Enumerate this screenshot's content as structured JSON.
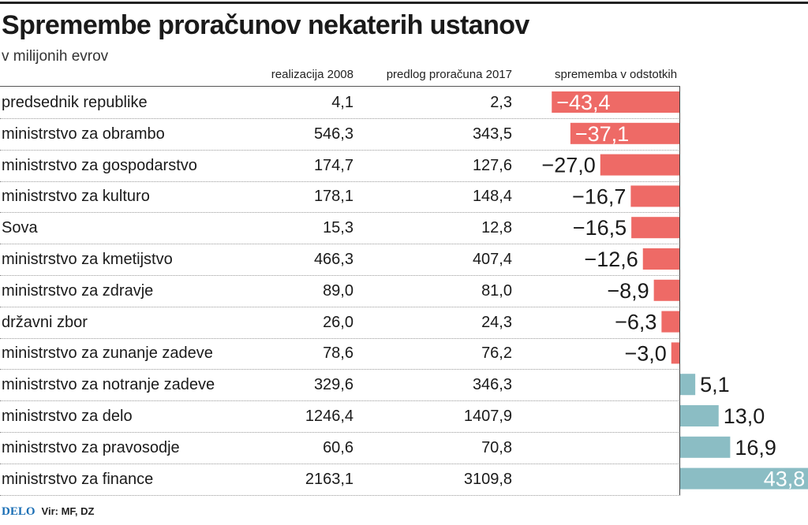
{
  "title": "Spremembe proračunov nekaterih ustanov",
  "subtitle": "v milijonih evrov",
  "columns": {
    "col1": "realizacija 2008",
    "col2": "predlog proračuna 2017",
    "col3": "sprememba v odstotkih"
  },
  "footer": {
    "logo": "DELO",
    "source": "Vir: MF, DZ"
  },
  "colors": {
    "negative": "#ee6a66",
    "positive": "#8bbdc4"
  },
  "chart_data": {
    "type": "bar",
    "orientation": "horizontal",
    "categories": [
      "predsednik republike",
      "ministrstvo za obrambo",
      "ministrstvo za gospodarstvo",
      "ministrstvo za kulturo",
      "Sova",
      "ministrstvo za kmetijstvo",
      "ministrstvo za zdravje",
      "državni zbor",
      "ministrstvo za zunanje zadeve",
      "ministrstvo za notranje zadeve",
      "ministrstvo za delo",
      "ministrstvo za pravosodje",
      "ministrstvo za finance"
    ],
    "rows": [
      {
        "name": "predsednik republike",
        "v2008": "4,1",
        "v2017": "2,3",
        "change": -43.4,
        "label": "−43,4"
      },
      {
        "name": "ministrstvo za obrambo",
        "v2008": "546,3",
        "v2017": "343,5",
        "change": -37.1,
        "label": "−37,1"
      },
      {
        "name": "ministrstvo za gospodarstvo",
        "v2008": "174,7",
        "v2017": "127,6",
        "change": -27.0,
        "label": "−27,0"
      },
      {
        "name": "ministrstvo za kulturo",
        "v2008": "178,1",
        "v2017": "148,4",
        "change": -16.7,
        "label": "−16,7"
      },
      {
        "name": "Sova",
        "v2008": "15,3",
        "v2017": "12,8",
        "change": -16.5,
        "label": "−16,5"
      },
      {
        "name": "ministrstvo za kmetijstvo",
        "v2008": "466,3",
        "v2017": "407,4",
        "change": -12.6,
        "label": "−12,6"
      },
      {
        "name": "ministrstvo za zdravje",
        "v2008": "89,0",
        "v2017": "81,0",
        "change": -8.9,
        "label": "−8,9"
      },
      {
        "name": "državni zbor",
        "v2008": "26,0",
        "v2017": "24,3",
        "change": -6.3,
        "label": "−6,3"
      },
      {
        "name": "ministrstvo za zunanje zadeve",
        "v2008": "78,6",
        "v2017": "76,2",
        "change": -3.0,
        "label": "−3,0"
      },
      {
        "name": "ministrstvo za notranje zadeve",
        "v2008": "329,6",
        "v2017": "346,3",
        "change": 5.1,
        "label": "5,1"
      },
      {
        "name": "ministrstvo za delo",
        "v2008": "1246,4",
        "v2017": "1407,9",
        "change": 13.0,
        "label": "13,0"
      },
      {
        "name": "ministrstvo za pravosodje",
        "v2008": "60,6",
        "v2017": "70,8",
        "change": 16.9,
        "label": "16,9"
      },
      {
        "name": "ministrstvo za finance",
        "v2008": "2163,1",
        "v2017": "3109,8",
        "change": 43.8,
        "label": "43,8"
      }
    ],
    "grid": false,
    "legend": "none"
  }
}
